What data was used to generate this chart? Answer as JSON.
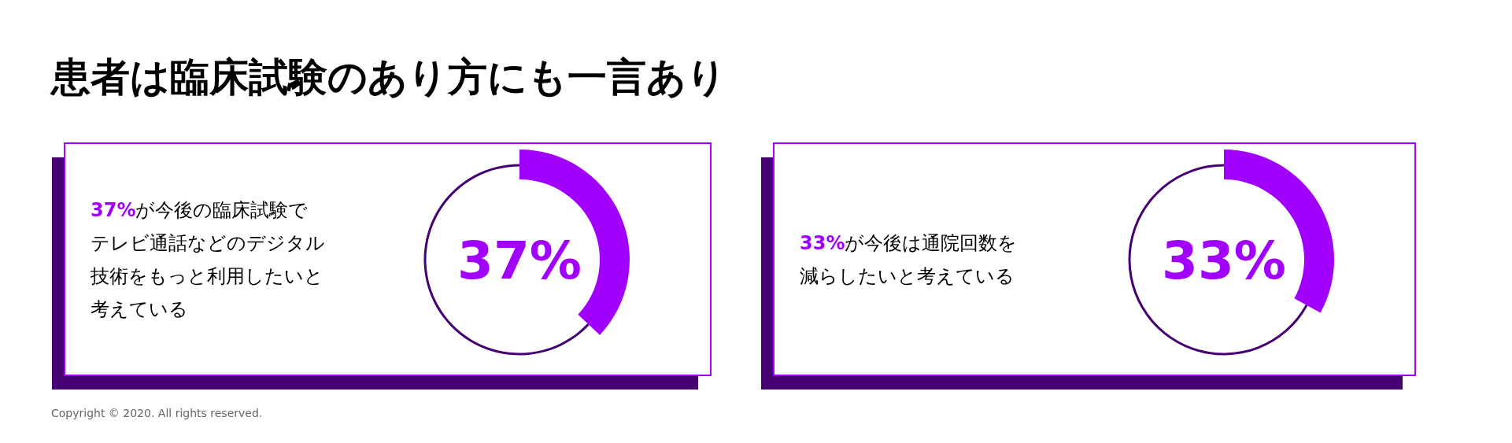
{
  "chart_data": [
    {
      "type": "donut",
      "title": "患者は臨床試験のあり方にも一言あり",
      "categories": [
        null,
        null
      ],
      "values": [
        37,
        63
      ],
      "colors": [
        "#a100ff",
        "#460073"
      ],
      "annotations": [
        "37%",
        "37%が今後の臨床試験で",
        "テレビ通話などのデジタル",
        "技術をもっと利用したいと",
        "考えている",
        "Copyright © 2020. All rights reserved."
      ]
    },
    {
      "type": "donut",
      "categories": [
        null,
        null
      ],
      "values": [
        33,
        67
      ],
      "colors": [
        "#a100ff",
        "#460073"
      ],
      "annotations": [
        "33%",
        "33%が今後は通院回数を",
        "減らしたいと考えている"
      ]
    }
  ]
}
